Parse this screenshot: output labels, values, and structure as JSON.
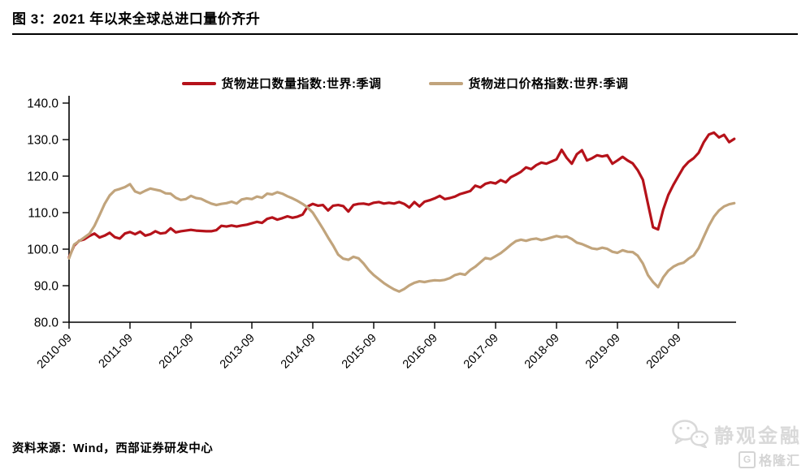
{
  "header": {
    "title": "图 3：2021 年以来全球总进口量价齐升"
  },
  "footer": {
    "source": "资料来源：Wind，西部证券研发中心"
  },
  "watermark": {
    "wechat_brand": "静观金融",
    "gelonghui": "格隆汇",
    "g_letter": "G"
  },
  "colors": {
    "quantity_line": "#b5121a",
    "price_line": "#c1a47c",
    "axis": "#000000",
    "watermark_gray": "#d9d9d9"
  },
  "chart_data": {
    "type": "line",
    "title": "图 3：2021 年以来全球总进口量价齐升",
    "xlabel": "",
    "ylabel": "",
    "ylim": [
      80,
      140
    ],
    "grid": false,
    "legend_position": "top-center",
    "x_monthly_start": "2010-09",
    "x_monthly_end": "2021-08",
    "y_ticks": [
      {
        "value": 80,
        "label": "80.0"
      },
      {
        "value": 90,
        "label": "90.0"
      },
      {
        "value": 100,
        "label": "100.0"
      },
      {
        "value": 110,
        "label": "110.0"
      },
      {
        "value": 120,
        "label": "120.0"
      },
      {
        "value": 130,
        "label": "130.0"
      },
      {
        "value": 140,
        "label": "140.0"
      }
    ],
    "x_ticks": [
      {
        "index": 0,
        "label": "2010-09"
      },
      {
        "index": 12,
        "label": "2011-09"
      },
      {
        "index": 24,
        "label": "2012-09"
      },
      {
        "index": 36,
        "label": "2013-09"
      },
      {
        "index": 48,
        "label": "2014-09"
      },
      {
        "index": 60,
        "label": "2015-09"
      },
      {
        "index": 72,
        "label": "2016-09"
      },
      {
        "index": 84,
        "label": "2017-09"
      },
      {
        "index": 96,
        "label": "2018-09"
      },
      {
        "index": 108,
        "label": "2019-09"
      },
      {
        "index": 120,
        "label": "2020-09"
      }
    ],
    "series": [
      {
        "name": "货物进口数量指数:世界:季调",
        "color": "#b5121a",
        "values": [
          97.8,
          101.0,
          102.3,
          102.7,
          103.6,
          104.3,
          103.2,
          103.7,
          104.5,
          103.3,
          102.9,
          104.3,
          104.7,
          104.1,
          104.8,
          103.7,
          104.1,
          104.9,
          104.3,
          104.5,
          105.7,
          104.6,
          104.9,
          105.1,
          105.3,
          105.1,
          105.0,
          104.9,
          104.9,
          105.2,
          106.4,
          106.2,
          106.5,
          106.2,
          106.5,
          106.7,
          107.1,
          107.5,
          107.2,
          108.3,
          108.7,
          108.1,
          108.5,
          109.0,
          108.6,
          108.9,
          109.5,
          111.7,
          112.4,
          111.9,
          112.1,
          110.6,
          111.9,
          112.1,
          111.8,
          110.3,
          112.1,
          112.4,
          112.5,
          112.2,
          112.7,
          112.9,
          112.5,
          112.7,
          112.5,
          112.9,
          112.4,
          111.4,
          112.9,
          111.7,
          113.0,
          113.4,
          113.9,
          114.6,
          113.7,
          114.0,
          114.4,
          115.1,
          115.5,
          115.9,
          117.4,
          116.9,
          117.9,
          118.3,
          118.0,
          118.9,
          118.3,
          119.7,
          120.4,
          121.2,
          122.4,
          121.9,
          123.0,
          123.7,
          123.4,
          124.0,
          124.6,
          127.2,
          125.0,
          123.4,
          126.0,
          127.1,
          124.3,
          124.9,
          125.7,
          125.4,
          125.7,
          123.4,
          124.3,
          125.3,
          124.3,
          123.5,
          121.6,
          119.0,
          112.5,
          106.0,
          105.4,
          110.8,
          114.8,
          117.6,
          120.0,
          122.4,
          123.9,
          124.9,
          126.4,
          129.3,
          131.4,
          131.9,
          130.6,
          131.3,
          129.3,
          130.2
        ]
      },
      {
        "name": "货物进口价格指数:世界:季调",
        "color": "#c1a47c",
        "values": [
          97.5,
          101.3,
          102.2,
          103.2,
          104.2,
          106.4,
          109.3,
          112.4,
          114.7,
          116.1,
          116.5,
          117.0,
          117.8,
          115.8,
          115.3,
          116.0,
          116.6,
          116.3,
          116.0,
          115.3,
          115.2,
          114.1,
          113.5,
          113.7,
          114.6,
          114.0,
          113.8,
          113.1,
          112.5,
          112.1,
          112.4,
          112.6,
          113.0,
          112.5,
          113.6,
          113.9,
          113.7,
          114.4,
          114.1,
          115.2,
          115.0,
          115.6,
          115.2,
          114.5,
          113.9,
          113.2,
          112.4,
          111.4,
          110.0,
          107.8,
          105.6,
          103.2,
          101.0,
          98.5,
          97.4,
          97.1,
          97.9,
          97.5,
          96.1,
          94.3,
          92.9,
          91.8,
          90.7,
          89.8,
          89.0,
          88.4,
          89.1,
          90.1,
          90.8,
          91.2,
          91.0,
          91.3,
          91.5,
          91.4,
          91.6,
          92.1,
          92.9,
          93.3,
          93.0,
          94.3,
          95.2,
          96.4,
          97.6,
          97.3,
          98.1,
          98.9,
          100.0,
          101.2,
          102.2,
          102.6,
          102.3,
          102.7,
          102.9,
          102.5,
          102.8,
          103.2,
          103.6,
          103.3,
          103.5,
          102.8,
          101.8,
          101.4,
          100.8,
          100.2,
          100.0,
          100.4,
          100.1,
          99.3,
          99.0,
          99.7,
          99.3,
          99.2,
          98.2,
          96.1,
          92.9,
          91.0,
          89.6,
          92.3,
          94.1,
          95.2,
          95.9,
          96.3,
          97.4,
          98.3,
          100.3,
          103.4,
          106.4,
          108.9,
          110.6,
          111.7,
          112.3,
          112.6
        ]
      }
    ]
  }
}
